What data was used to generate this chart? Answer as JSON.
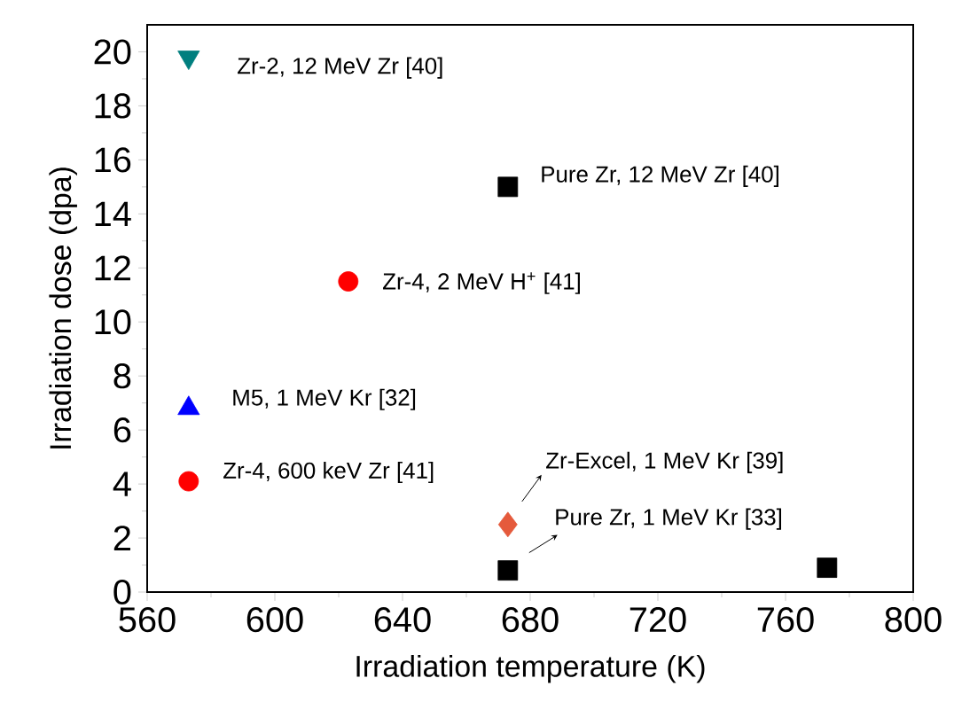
{
  "chart_data": {
    "type": "scatter",
    "xlabel": "Irradiation temperature (K)",
    "ylabel": "Irradiation dose (dpa)",
    "xlim": [
      560,
      800
    ],
    "xticks": [
      560,
      600,
      640,
      680,
      720,
      760,
      800
    ],
    "ylim": [
      0,
      21
    ],
    "yticks": [
      0,
      2,
      4,
      6,
      8,
      10,
      12,
      14,
      16,
      18,
      20
    ],
    "series": [
      {
        "color": "#000000",
        "marker": "square",
        "x": [
          673,
          673,
          773
        ],
        "values": [
          15,
          0.8,
          0.9
        ]
      },
      {
        "color": "#ff0000",
        "marker": "circle",
        "x": [
          573,
          623
        ],
        "values": [
          4.1,
          11.5
        ]
      },
      {
        "color": "#0000ff",
        "marker": "triangle",
        "x": [
          573
        ],
        "values": [
          6.8
        ]
      },
      {
        "color": "#007f7f",
        "marker": "triangle down",
        "x": [
          573
        ],
        "values": [
          19.8
        ]
      },
      {
        "color": "#e55a3c",
        "marker": "diamond",
        "x": [
          673
        ],
        "values": [
          2.5
        ]
      }
    ],
    "annotations": [
      {
        "text": "Zr-2, 12 MeV Zr [40]",
        "x": 573,
        "y": 19.8
      },
      {
        "text": "Pure Zr, 12 MeV Zr [40]",
        "x": 673,
        "y": 15
      },
      {
        "text": "Zr-4, 2 MeV H$^{+}$ [41]",
        "x": 623,
        "y": 11.5
      },
      {
        "text": "M5, 1 MeV Kr [32]",
        "x": 573,
        "y": 6.8
      },
      {
        "text": "Zr-4, 600 keV Zr [41]",
        "x": 573,
        "y": 4.1
      },
      {
        "text": "Zr-Excel, 1 MeV Kr [39]",
        "x": 673,
        "y": 2.5
      },
      {
        "text": "Pure Zr, 1 MeV Kr [33]",
        "x": 673,
        "y": 0.8
      }
    ]
  }
}
